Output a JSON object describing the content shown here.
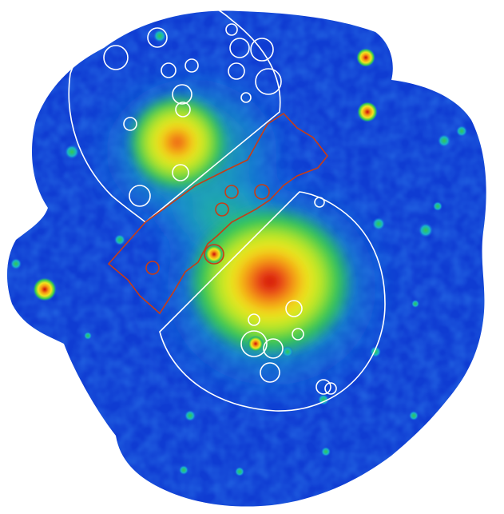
{
  "image": {
    "kind": "smoothed X-ray count map with contour regions",
    "colormap": [
      "#0a1ec8",
      "#1460e6",
      "#19b4c8",
      "#32c850",
      "#b4e628",
      "#f0e61e",
      "#f59614",
      "#e63214",
      "#c80a0a"
    ],
    "background_color": "#ffffff",
    "field_color": "#0f3cd2"
  },
  "regions": {
    "north_sector_color": "#ffffff",
    "bridge_box_color": "#c83c14",
    "south_sector_color": "#ffffff",
    "point_source_mask_color": "#ffffff"
  }
}
